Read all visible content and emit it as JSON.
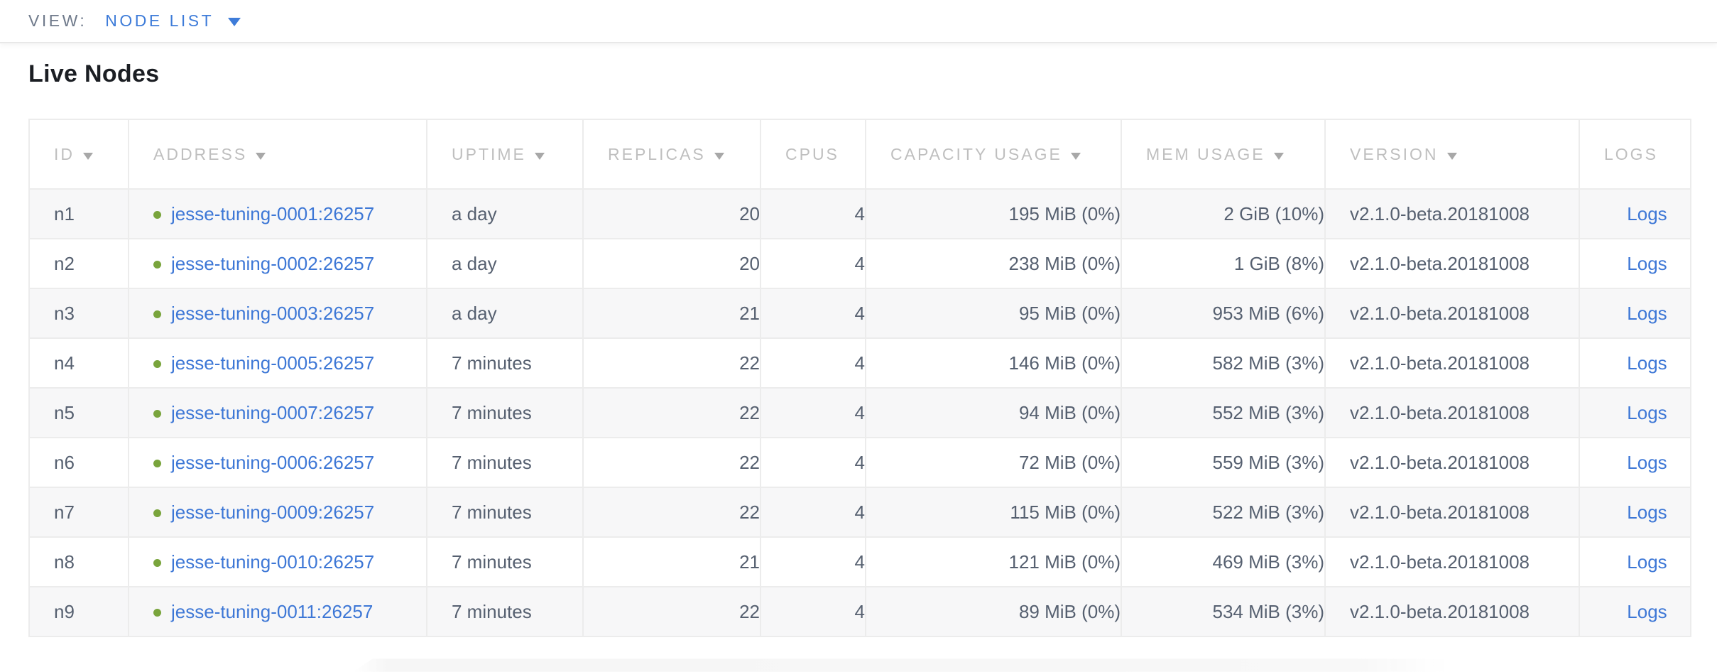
{
  "view_bar": {
    "label": "VIEW:",
    "selected": "NODE LIST"
  },
  "page": {
    "title": "Live Nodes"
  },
  "colors": {
    "accent_blue": "#3e7cd9",
    "link_blue": "#3d77d6",
    "healthy_green": "#79a43c",
    "header_gray": "#bfbfbf",
    "body_text": "#566070",
    "row_stripe": "#f7f7f8",
    "border": "#ececec"
  },
  "table": {
    "columns": [
      {
        "id": "id",
        "label": "ID",
        "sortable": true
      },
      {
        "id": "address",
        "label": "ADDRESS",
        "sortable": true
      },
      {
        "id": "uptime",
        "label": "UPTIME",
        "sortable": true
      },
      {
        "id": "replicas",
        "label": "REPLICAS",
        "sortable": true
      },
      {
        "id": "cpus",
        "label": "CPUS",
        "sortable": false
      },
      {
        "id": "capacity",
        "label": "CAPACITY USAGE",
        "sortable": true
      },
      {
        "id": "mem",
        "label": "MEM USAGE",
        "sortable": true
      },
      {
        "id": "version",
        "label": "VERSION",
        "sortable": true
      },
      {
        "id": "logs",
        "label": "LOGS",
        "sortable": false
      }
    ],
    "rows": [
      {
        "id": "n1",
        "address": "jesse-tuning-0001:26257",
        "uptime": "a day",
        "replicas": "20",
        "cpus": "4",
        "capacity": "195 MiB (0%)",
        "mem": "2 GiB (10%)",
        "version": "v2.1.0-beta.20181008",
        "logs": "Logs"
      },
      {
        "id": "n2",
        "address": "jesse-tuning-0002:26257",
        "uptime": "a day",
        "replicas": "20",
        "cpus": "4",
        "capacity": "238 MiB (0%)",
        "mem": "1 GiB (8%)",
        "version": "v2.1.0-beta.20181008",
        "logs": "Logs"
      },
      {
        "id": "n3",
        "address": "jesse-tuning-0003:26257",
        "uptime": "a day",
        "replicas": "21",
        "cpus": "4",
        "capacity": "95 MiB (0%)",
        "mem": "953 MiB (6%)",
        "version": "v2.1.0-beta.20181008",
        "logs": "Logs"
      },
      {
        "id": "n4",
        "address": "jesse-tuning-0005:26257",
        "uptime": "7 minutes",
        "replicas": "22",
        "cpus": "4",
        "capacity": "146 MiB (0%)",
        "mem": "582 MiB (3%)",
        "version": "v2.1.0-beta.20181008",
        "logs": "Logs"
      },
      {
        "id": "n5",
        "address": "jesse-tuning-0007:26257",
        "uptime": "7 minutes",
        "replicas": "22",
        "cpus": "4",
        "capacity": "94 MiB (0%)",
        "mem": "552 MiB (3%)",
        "version": "v2.1.0-beta.20181008",
        "logs": "Logs"
      },
      {
        "id": "n6",
        "address": "jesse-tuning-0006:26257",
        "uptime": "7 minutes",
        "replicas": "22",
        "cpus": "4",
        "capacity": "72 MiB (0%)",
        "mem": "559 MiB (3%)",
        "version": "v2.1.0-beta.20181008",
        "logs": "Logs"
      },
      {
        "id": "n7",
        "address": "jesse-tuning-0009:26257",
        "uptime": "7 minutes",
        "replicas": "22",
        "cpus": "4",
        "capacity": "115 MiB (0%)",
        "mem": "522 MiB (3%)",
        "version": "v2.1.0-beta.20181008",
        "logs": "Logs"
      },
      {
        "id": "n8",
        "address": "jesse-tuning-0010:26257",
        "uptime": "7 minutes",
        "replicas": "21",
        "cpus": "4",
        "capacity": "121 MiB (0%)",
        "mem": "469 MiB (3%)",
        "version": "v2.1.0-beta.20181008",
        "logs": "Logs"
      },
      {
        "id": "n9",
        "address": "jesse-tuning-0011:26257",
        "uptime": "7 minutes",
        "replicas": "22",
        "cpus": "4",
        "capacity": "89 MiB (0%)",
        "mem": "534 MiB (3%)",
        "version": "v2.1.0-beta.20181008",
        "logs": "Logs"
      }
    ]
  }
}
